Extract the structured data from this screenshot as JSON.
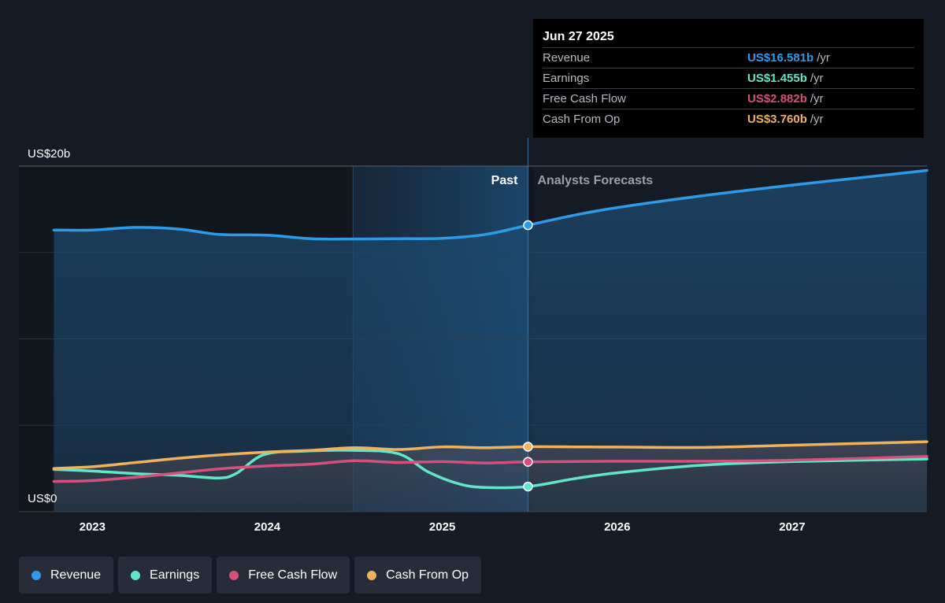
{
  "tooltip": {
    "date": "Jun 27 2025",
    "rows": [
      {
        "label": "Revenue",
        "value": "US$16.581b",
        "unit": "/yr",
        "color": "#2e9be8"
      },
      {
        "label": "Earnings",
        "value": "US$1.455b",
        "unit": "/yr",
        "color": "#63e6c8"
      },
      {
        "label": "Free Cash Flow",
        "value": "US$2.882b",
        "unit": "/yr",
        "color": "#d4517e"
      },
      {
        "label": "Cash From Op",
        "value": "US$3.760b",
        "unit": "/yr",
        "color": "#f0b25c"
      }
    ]
  },
  "legend": [
    {
      "label": "Revenue",
      "color": "#2e9be8"
    },
    {
      "label": "Earnings",
      "color": "#63e6c8"
    },
    {
      "label": "Free Cash Flow",
      "color": "#d4517e"
    },
    {
      "label": "Cash From Op",
      "color": "#f0b25c"
    }
  ],
  "chart_data": {
    "type": "line",
    "y_unit": "US$ billions",
    "ylim": [
      0,
      20
    ],
    "y_tick_labels": [
      {
        "value": 20,
        "label": "US$20b"
      },
      {
        "value": 0,
        "label": "US$0"
      }
    ],
    "xlim": [
      2022.58,
      2027.77
    ],
    "x_ticks": [
      2023,
      2024,
      2025,
      2026,
      2027
    ],
    "past_label": "Past",
    "forecast_label": "Analysts Forecasts",
    "divider_x": 2025.49,
    "highlight_start_x": 2024.49,
    "grid": true,
    "legend_placement": "bottom",
    "series": [
      {
        "name": "Revenue",
        "color": "#2e9be8",
        "area": true,
        "marker_value": 16.581,
        "points": [
          [
            2022.78,
            16.3
          ],
          [
            2023.0,
            16.3
          ],
          [
            2023.25,
            16.45
          ],
          [
            2023.5,
            16.35
          ],
          [
            2023.72,
            16.05
          ],
          [
            2024.0,
            16.0
          ],
          [
            2024.25,
            15.8
          ],
          [
            2024.5,
            15.78
          ],
          [
            2024.75,
            15.8
          ],
          [
            2025.0,
            15.82
          ],
          [
            2025.25,
            16.05
          ],
          [
            2025.49,
            16.581
          ],
          [
            2025.75,
            17.15
          ],
          [
            2026.0,
            17.6
          ],
          [
            2026.5,
            18.3
          ],
          [
            2027.0,
            18.9
          ],
          [
            2027.5,
            19.45
          ],
          [
            2027.77,
            19.75
          ]
        ]
      },
      {
        "name": "Earnings",
        "color": "#63e6c8",
        "area": false,
        "marker_value": 1.455,
        "points": [
          [
            2022.78,
            2.45
          ],
          [
            2023.0,
            2.35
          ],
          [
            2023.25,
            2.2
          ],
          [
            2023.5,
            2.1
          ],
          [
            2023.72,
            1.95
          ],
          [
            2023.82,
            2.2
          ],
          [
            2023.98,
            3.3
          ],
          [
            2024.2,
            3.5
          ],
          [
            2024.5,
            3.55
          ],
          [
            2024.75,
            3.35
          ],
          [
            2024.92,
            2.3
          ],
          [
            2025.1,
            1.6
          ],
          [
            2025.25,
            1.4
          ],
          [
            2025.49,
            1.455
          ],
          [
            2025.75,
            1.9
          ],
          [
            2026.0,
            2.25
          ],
          [
            2026.5,
            2.7
          ],
          [
            2027.0,
            2.9
          ],
          [
            2027.77,
            3.05
          ]
        ]
      },
      {
        "name": "Free Cash Flow",
        "color": "#d4517e",
        "area": false,
        "marker_value": 2.882,
        "points": [
          [
            2022.78,
            1.75
          ],
          [
            2023.0,
            1.8
          ],
          [
            2023.25,
            2.0
          ],
          [
            2023.5,
            2.25
          ],
          [
            2023.75,
            2.5
          ],
          [
            2024.0,
            2.65
          ],
          [
            2024.25,
            2.75
          ],
          [
            2024.5,
            2.95
          ],
          [
            2024.75,
            2.85
          ],
          [
            2025.0,
            2.9
          ],
          [
            2025.25,
            2.82
          ],
          [
            2025.49,
            2.882
          ],
          [
            2026.0,
            2.92
          ],
          [
            2026.5,
            2.92
          ],
          [
            2027.0,
            2.98
          ],
          [
            2027.77,
            3.2
          ]
        ]
      },
      {
        "name": "Cash From Op",
        "color": "#f0b25c",
        "area": false,
        "marker_value": 3.76,
        "points": [
          [
            2022.78,
            2.5
          ],
          [
            2023.0,
            2.6
          ],
          [
            2023.25,
            2.85
          ],
          [
            2023.5,
            3.1
          ],
          [
            2023.75,
            3.3
          ],
          [
            2024.0,
            3.45
          ],
          [
            2024.25,
            3.55
          ],
          [
            2024.5,
            3.7
          ],
          [
            2024.75,
            3.6
          ],
          [
            2025.0,
            3.75
          ],
          [
            2025.25,
            3.7
          ],
          [
            2025.49,
            3.76
          ],
          [
            2025.75,
            3.75
          ],
          [
            2026.0,
            3.74
          ],
          [
            2026.5,
            3.72
          ],
          [
            2027.0,
            3.85
          ],
          [
            2027.77,
            4.05
          ]
        ]
      }
    ]
  }
}
